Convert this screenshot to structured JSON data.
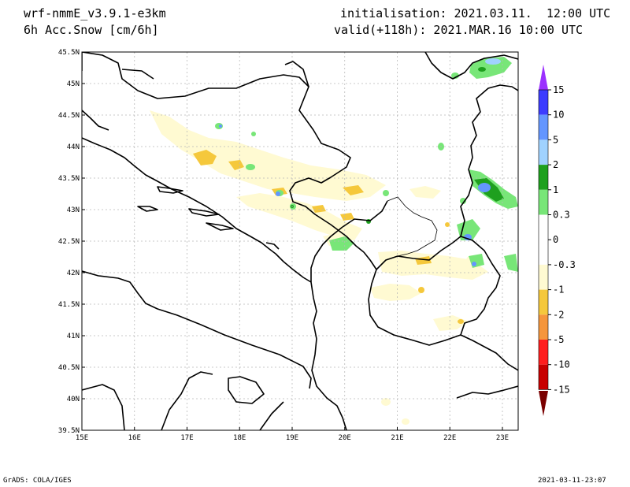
{
  "header": {
    "model": "wrf-nmmE_v3.9.1-e3km",
    "field": "6h Acc.Snow [cm/6h]",
    "init": "initialisation: 2021.03.11.  12:00 UTC",
    "valid": "valid(+118h): 2021.MAR.16 10:00 UTC"
  },
  "footer": {
    "credit": "GrADS: COLA/IGES",
    "timestamp": "2021-03-11-23:07"
  },
  "map": {
    "lat_labels": [
      "45.5N",
      "45N",
      "44.5N",
      "44N",
      "43.5N",
      "43N",
      "42.5N",
      "42N",
      "41.5N",
      "41N",
      "40.5N",
      "40N",
      "39.5N"
    ],
    "lon_labels": [
      "15E",
      "16E",
      "17E",
      "18E",
      "19E",
      "20E",
      "21E",
      "22E",
      "23E"
    ]
  },
  "legend": {
    "labels": [
      "15",
      "10",
      "5",
      "2",
      "1",
      "0.3",
      "0",
      "-0.3",
      "-1",
      "-2",
      "-5",
      "-10",
      "-15"
    ],
    "colors": [
      "#3c3cff",
      "#6496ff",
      "#a0d2ff",
      "#1ea01e",
      "#78e678",
      "#ffffff",
      "#ffffff",
      "#fffad2",
      "#f5c83c",
      "#f5963c",
      "#ff1e1e",
      "#c80000",
      "#a00000"
    ],
    "top_arrow_color": "#9b30ff",
    "bottom_arrow_color": "#7a0000"
  }
}
